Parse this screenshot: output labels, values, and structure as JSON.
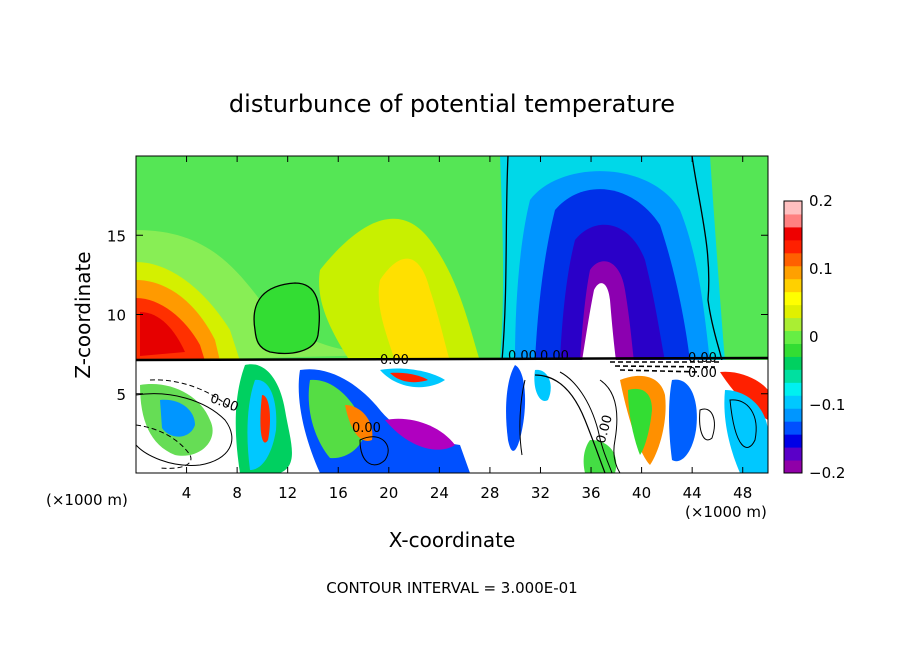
{
  "chart_data": {
    "type": "heatmap",
    "title": "disturbunce of potential temperature",
    "xlabel": "X-coordinate",
    "ylabel": "Z-coordinate",
    "x_unit_label_left": "(×1000 m)",
    "x_unit_label_right": "(×1000 m)",
    "footer": "CONTOUR INTERVAL = 3.000E-01",
    "xlim": [
      0,
      50
    ],
    "ylim": [
      0,
      20
    ],
    "x_ticks": [
      4,
      8,
      12,
      16,
      20,
      24,
      28,
      32,
      36,
      40,
      44,
      48
    ],
    "y_ticks": [
      5,
      10,
      15
    ],
    "colorbar": {
      "min": -0.2,
      "max": 0.2,
      "tick_values": [
        0.2,
        0.1,
        0,
        -0.1,
        -0.2
      ],
      "tick_labels": [
        "0.2",
        "0.1",
        "0",
        "−0.1",
        "−0.2"
      ],
      "colors": [
        "#9000a8",
        "#5a00c8",
        "#0000e6",
        "#0050ff",
        "#0096ff",
        "#00c8ff",
        "#00f0f0",
        "#00e0a0",
        "#00d060",
        "#33dd33",
        "#66ee44",
        "#aaee33",
        "#e0f000",
        "#ffff00",
        "#ffd000",
        "#ffa000",
        "#ff6000",
        "#ff2000",
        "#ee0000",
        "#ff8080",
        "#ffc0c0"
      ]
    },
    "contour_labels": [
      "0.00",
      "0.00",
      "0.00",
      "0.00",
      "0.00",
      "0.00",
      "0.00",
      "0.00"
    ]
  }
}
